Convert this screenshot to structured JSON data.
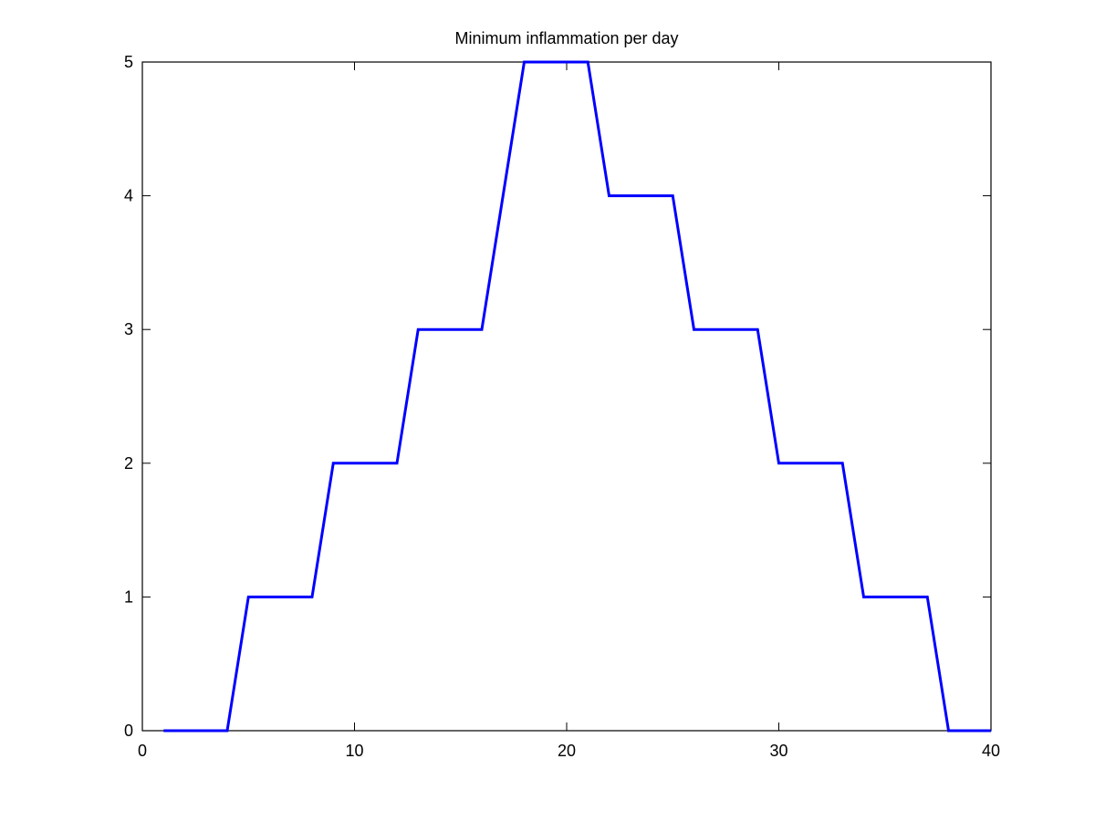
{
  "chart_data": {
    "type": "line",
    "title": "Minimum inflammation per day",
    "xlabel": "",
    "ylabel": "",
    "xlim": [
      0,
      40
    ],
    "ylim": [
      0,
      5
    ],
    "xticks": [
      0,
      10,
      20,
      30,
      40
    ],
    "yticks": [
      0,
      1,
      2,
      3,
      4,
      5
    ],
    "grid": false,
    "legend": "none",
    "series": [
      {
        "color": "#0000ff",
        "x": [
          1,
          2,
          3,
          4,
          5,
          6,
          7,
          8,
          9,
          10,
          11,
          12,
          13,
          14,
          15,
          16,
          17,
          18,
          19,
          20,
          21,
          22,
          23,
          24,
          25,
          26,
          27,
          28,
          29,
          30,
          31,
          32,
          33,
          34,
          35,
          36,
          37,
          38,
          39,
          40
        ],
        "y": [
          0,
          0,
          0,
          0,
          1,
          1,
          1,
          1,
          2,
          2,
          2,
          2,
          3,
          3,
          3,
          3,
          4,
          5,
          5,
          5,
          5,
          4,
          4,
          4,
          4,
          3,
          3,
          3,
          3,
          2,
          2,
          2,
          2,
          1,
          1,
          1,
          1,
          0,
          0,
          0
        ]
      }
    ]
  }
}
